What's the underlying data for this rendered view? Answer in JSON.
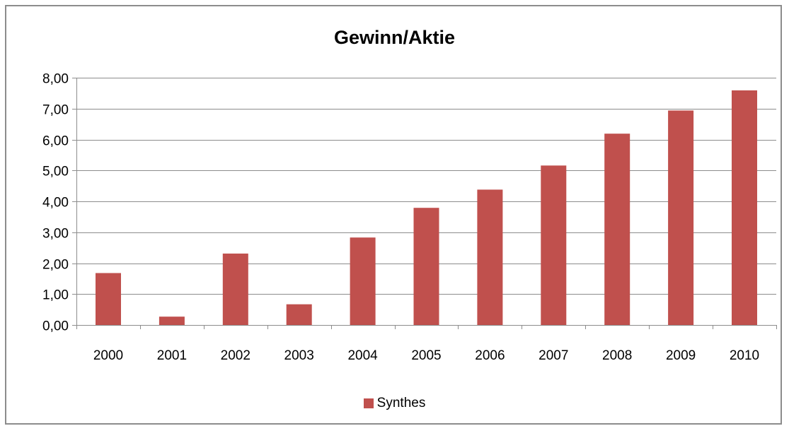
{
  "chart_data": {
    "type": "bar",
    "title": "Gewinn/Aktie",
    "xlabel": "",
    "ylabel": "",
    "categories": [
      "2000",
      "2001",
      "2002",
      "2003",
      "2004",
      "2005",
      "2006",
      "2007",
      "2008",
      "2009",
      "2010"
    ],
    "series": [
      {
        "name": "Synthes",
        "color": "#c0504d",
        "values": [
          1.68,
          0.27,
          2.31,
          0.67,
          2.83,
          3.79,
          4.38,
          5.16,
          6.19,
          6.94,
          7.59
        ]
      }
    ],
    "ylim": [
      0,
      8
    ],
    "yticks": [
      "0,00",
      "1,00",
      "2,00",
      "3,00",
      "4,00",
      "5,00",
      "6,00",
      "7,00",
      "8,00"
    ],
    "grid": true,
    "legend_position": "bottom"
  }
}
